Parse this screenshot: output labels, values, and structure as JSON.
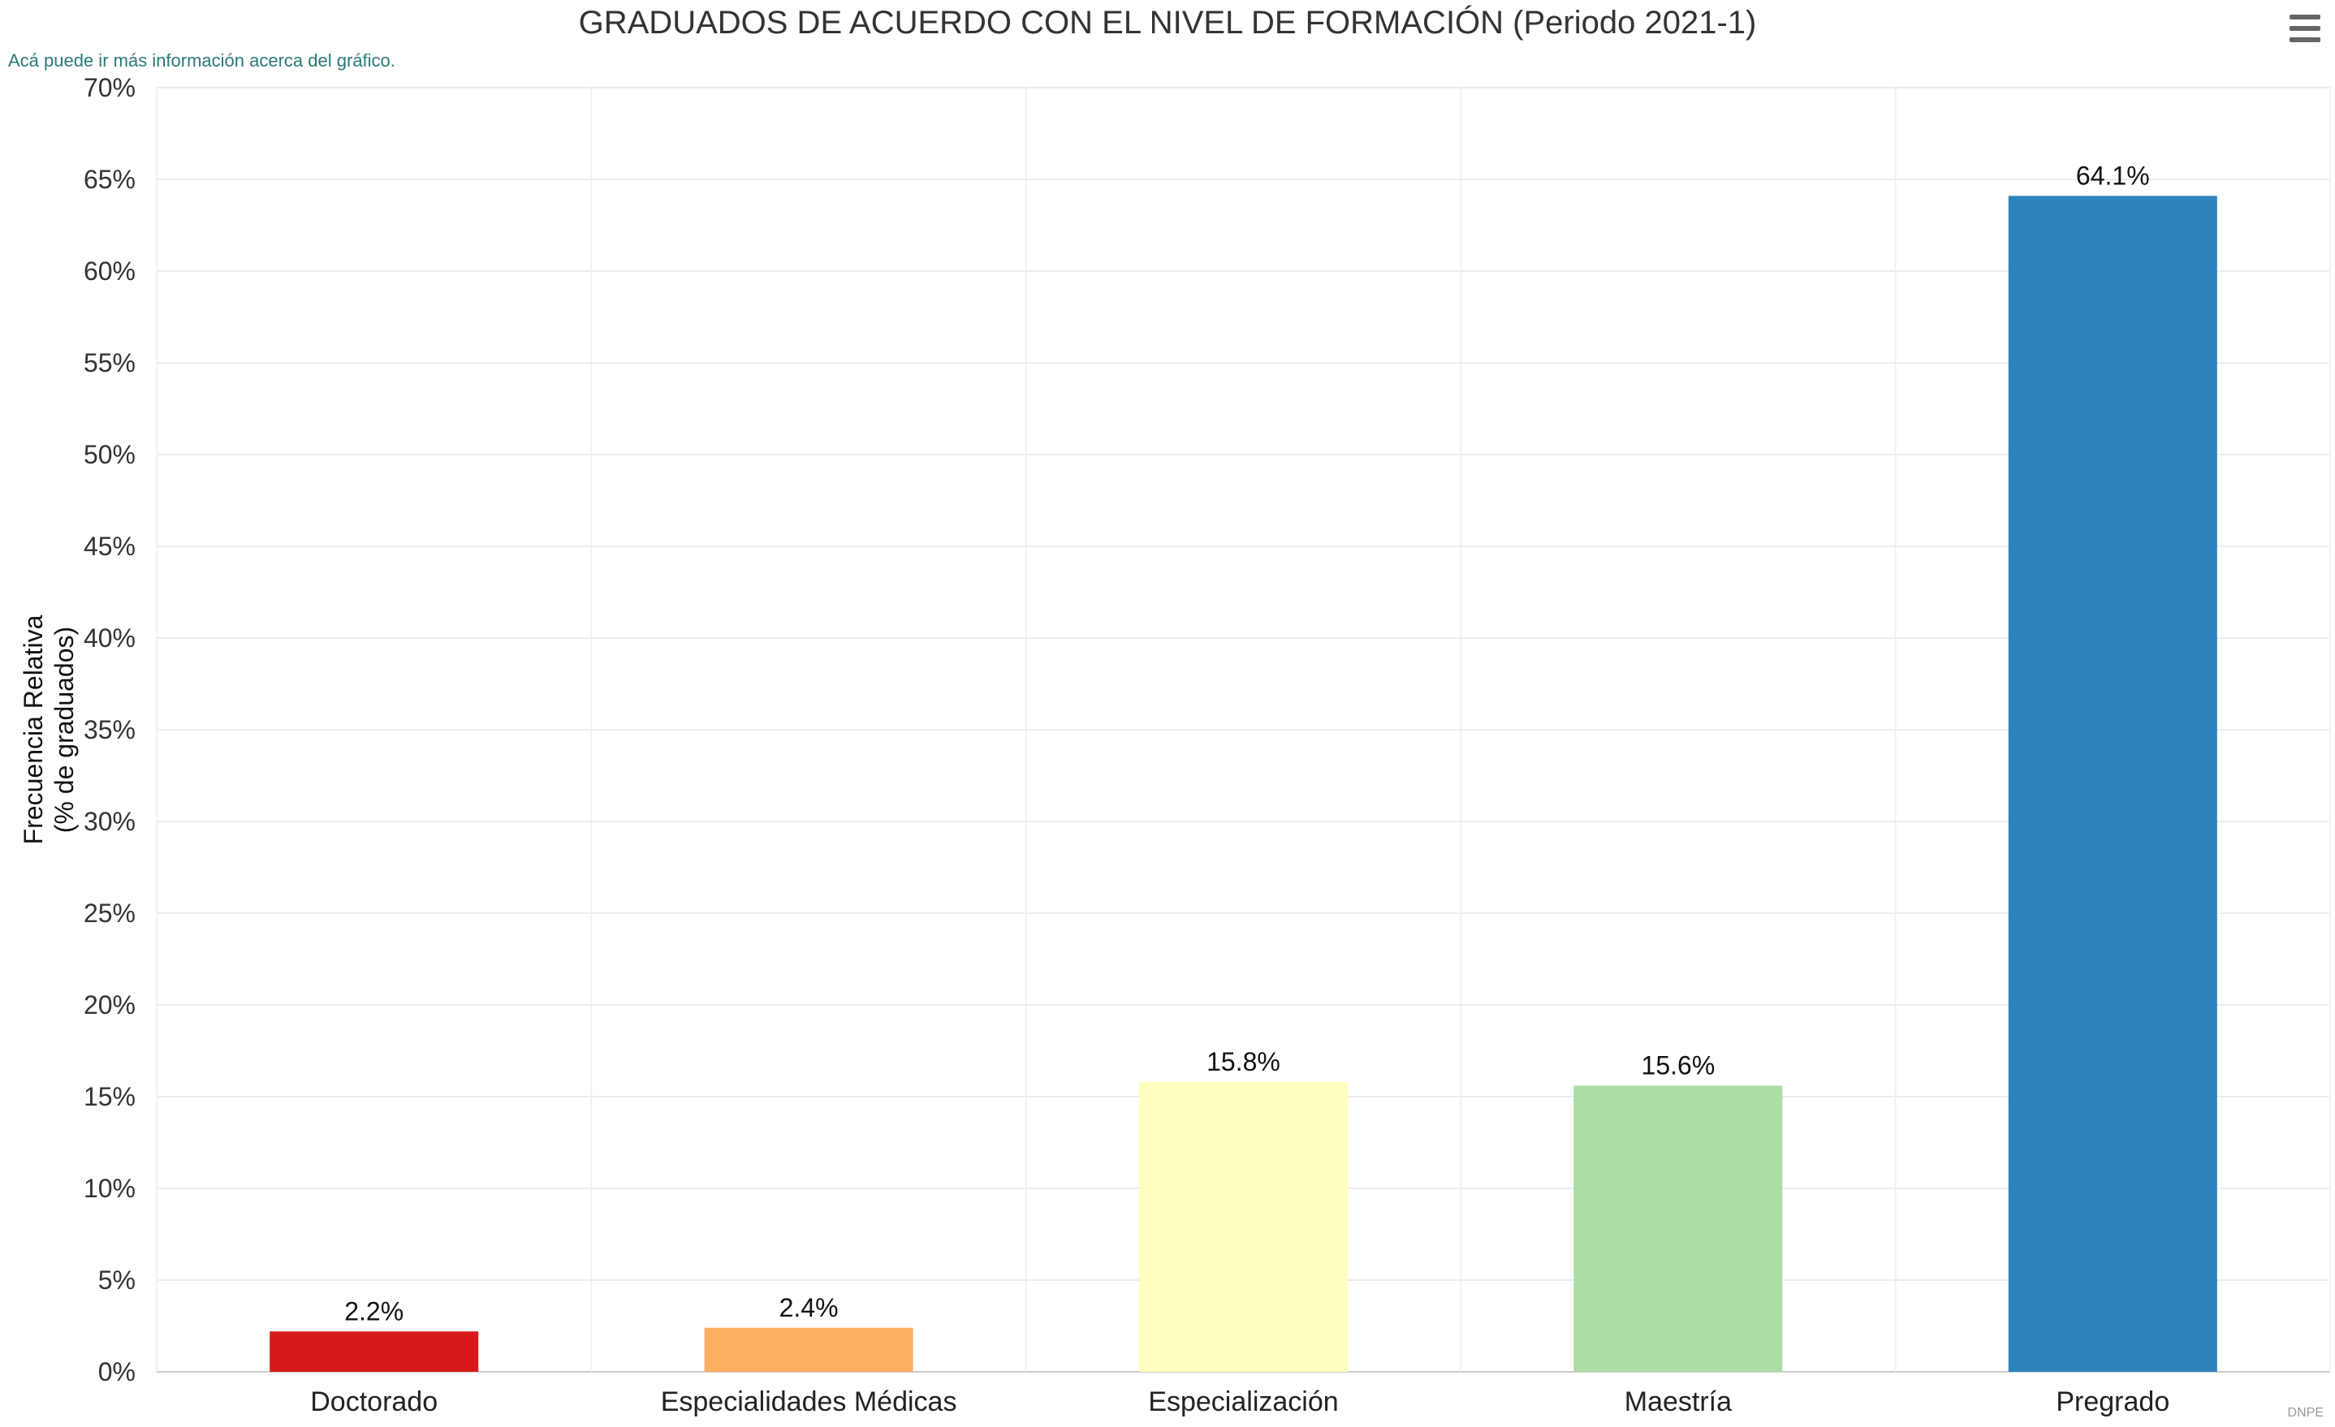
{
  "header": {
    "title": "GRADUADOS DE ACUERDO CON EL NIVEL DE FORMACIÓN (Periodo 2021-1)",
    "subtitle": "Acá puede ir más información acerca del gráfico.",
    "menu_icon": "hamburger-menu-icon",
    "credits": "DNPE"
  },
  "chart_data": {
    "type": "bar",
    "title": "GRADUADOS DE ACUERDO CON EL NIVEL DE FORMACIÓN (Periodo 2021-1)",
    "subtitle": "Acá puede ir más información acerca del gráfico.",
    "xlabel": "",
    "ylabel_lines": [
      "Frecuencia Relativa",
      "(% de graduados)"
    ],
    "categories": [
      "Doctorado",
      "Especialidades Médicas",
      "Especialización",
      "Maestría",
      "Pregrado"
    ],
    "values": [
      2.2,
      2.4,
      15.8,
      15.6,
      64.1
    ],
    "data_labels": [
      "2.2%",
      "2.4%",
      "15.8%",
      "15.6%",
      "64.1%"
    ],
    "colors": [
      "#d7191c",
      "#fdae61",
      "#ffffbf",
      "#abdda4",
      "#2b83ba"
    ],
    "ylim": [
      0,
      70
    ],
    "yticks": [
      0,
      5,
      10,
      15,
      20,
      25,
      30,
      35,
      40,
      45,
      50,
      55,
      60,
      65,
      70
    ],
    "ytick_labels": [
      "0%",
      "5%",
      "10%",
      "15%",
      "20%",
      "25%",
      "30%",
      "35%",
      "40%",
      "45%",
      "50%",
      "55%",
      "60%",
      "65%",
      "70%"
    ],
    "grid": true,
    "legend": "none"
  }
}
